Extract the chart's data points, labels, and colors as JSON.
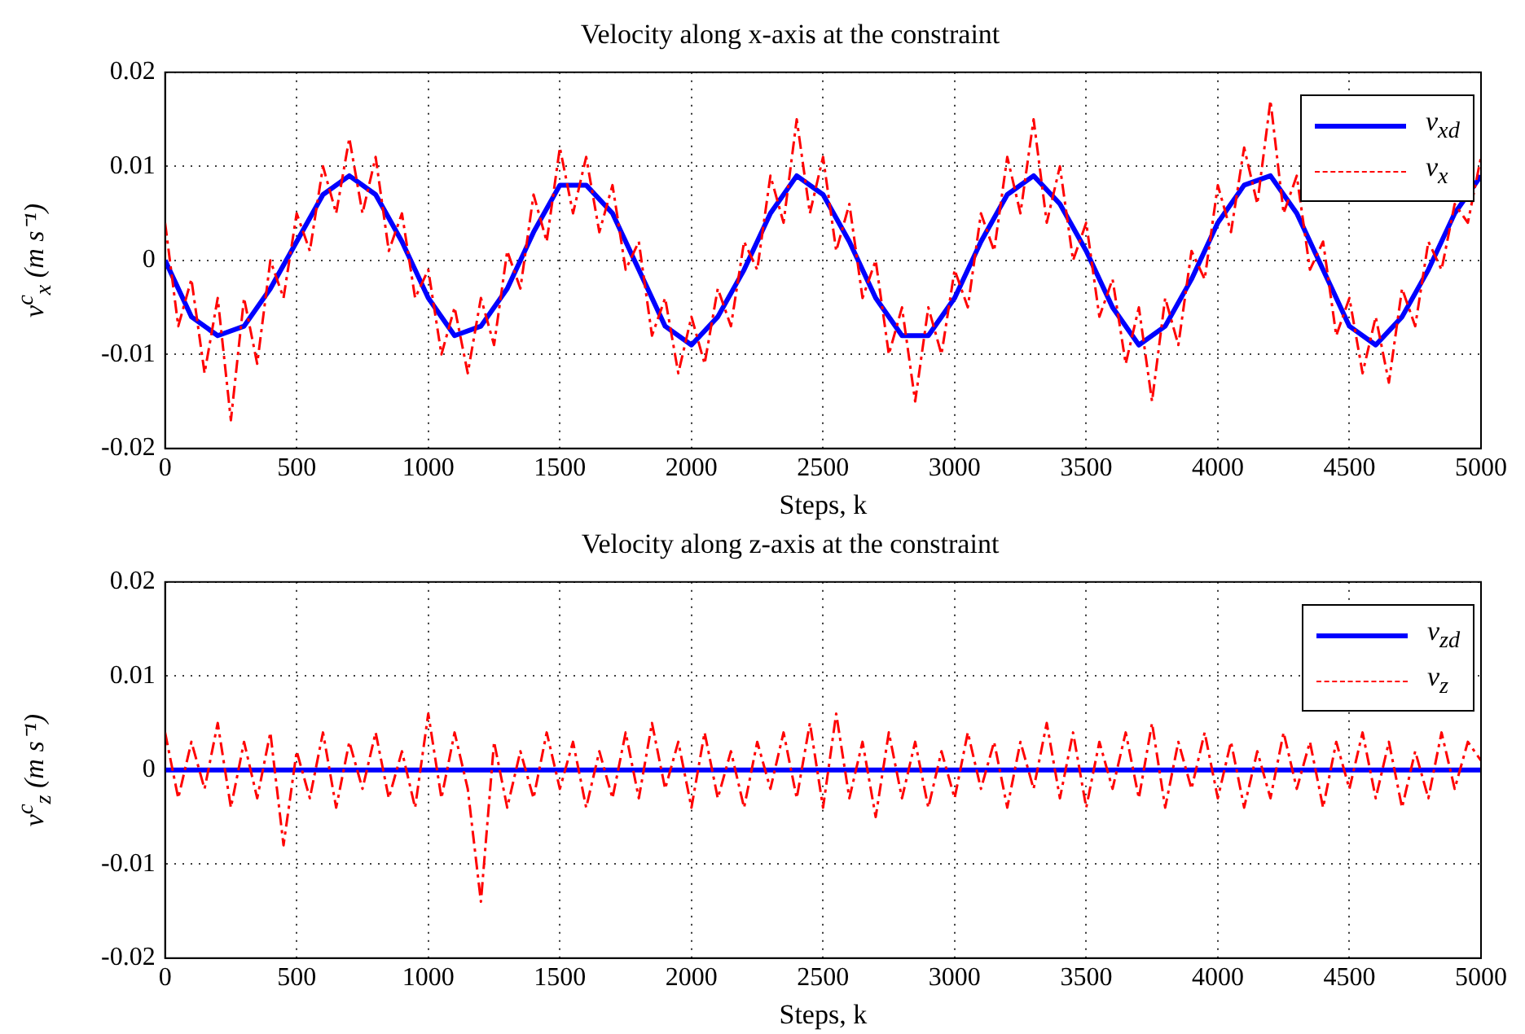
{
  "chart_data": [
    {
      "type": "line",
      "title": "Velocity along x-axis at the constraint",
      "xlabel": "Steps, k",
      "ylabel": "v$^{c}$$_{x}$ (m s⁻¹)",
      "x": [
        0,
        50,
        100,
        150,
        200,
        250,
        300,
        350,
        400,
        450,
        500,
        550,
        600,
        650,
        700,
        750,
        800,
        850,
        900,
        950,
        1000,
        1050,
        1100,
        1150,
        1200,
        1250,
        1300,
        1350,
        1400,
        1450,
        1500,
        1550,
        1600,
        1650,
        1700,
        1750,
        1800,
        1850,
        1900,
        1950,
        2000,
        2050,
        2100,
        2150,
        2200,
        2250,
        2300,
        2350,
        2400,
        2450,
        2500,
        2550,
        2600,
        2650,
        2700,
        2750,
        2800,
        2850,
        2900,
        2950,
        3000,
        3050,
        3100,
        3150,
        3200,
        3250,
        3300,
        3350,
        3400,
        3450,
        3500,
        3550,
        3600,
        3650,
        3700,
        3750,
        3800,
        3850,
        3900,
        3950,
        4000,
        4050,
        4100,
        4150,
        4200,
        4250,
        4300,
        4350,
        4400,
        4450,
        4500,
        4550,
        4600,
        4650,
        4700,
        4750,
        4800,
        4850,
        4900,
        4950,
        5000
      ],
      "series": [
        {
          "name": "v$_{xd}$",
          "color": "#0000ff",
          "line_style": "solid",
          "x": [
            0,
            100,
            200,
            300,
            400,
            500,
            600,
            700,
            800,
            900,
            1000,
            1100,
            1200,
            1300,
            1400,
            1500,
            1600,
            1700,
            1800,
            1900,
            2000,
            2100,
            2200,
            2300,
            2400,
            2500,
            2600,
            2700,
            2800,
            2900,
            3000,
            3100,
            3200,
            3300,
            3400,
            3500,
            3600,
            3700,
            3800,
            3900,
            4000,
            4100,
            4200,
            4300,
            4400,
            4500,
            4600,
            4700,
            4800,
            4900,
            5000
          ],
          "values": [
            0,
            -0.006,
            -0.008,
            -0.007,
            -0.003,
            0.002,
            0.007,
            0.009,
            0.007,
            0.002,
            -0.004,
            -0.008,
            -0.007,
            -0.003,
            0.003,
            0.008,
            0.008,
            0.005,
            -0.001,
            -0.007,
            -0.009,
            -0.006,
            -0.001,
            0.005,
            0.009,
            0.007,
            0.002,
            -0.004,
            -0.008,
            -0.008,
            -0.004,
            0.002,
            0.007,
            0.009,
            0.006,
            0.001,
            -0.005,
            -0.009,
            -0.007,
            -0.002,
            0.004,
            0.008,
            0.009,
            0.005,
            -0.001,
            -0.007,
            -0.009,
            -0.006,
            -0.001,
            0.005,
            0.009
          ]
        },
        {
          "name": "v$_{x}$",
          "color": "#ff0000",
          "line_style": "dashed",
          "values": [
            0.004,
            -0.007,
            -0.002,
            -0.012,
            -0.004,
            -0.017,
            -0.004,
            -0.011,
            0,
            -0.004,
            0.005,
            0.001,
            0.01,
            0.005,
            0.013,
            0.005,
            0.011,
            0.001,
            0.005,
            -0.004,
            -0.001,
            -0.01,
            -0.005,
            -0.012,
            -0.004,
            -0.009,
            0.001,
            -0.003,
            0.007,
            0.002,
            0.012,
            0.005,
            0.011,
            0.003,
            0.008,
            -0.001,
            0.002,
            -0.008,
            -0.004,
            -0.012,
            -0.006,
            -0.011,
            -0.003,
            -0.007,
            0.002,
            -0.001,
            0.009,
            0.004,
            0.015,
            0.005,
            0.011,
            0.001,
            0.006,
            -0.004,
            0,
            -0.01,
            -0.005,
            -0.015,
            -0.005,
            -0.01,
            -0.001,
            -0.005,
            0.005,
            0.001,
            0.011,
            0.005,
            0.015,
            0.004,
            0.01,
            0,
            0.004,
            -0.006,
            -0.002,
            -0.011,
            -0.005,
            -0.015,
            -0.004,
            -0.009,
            0.001,
            -0.002,
            0.008,
            0.003,
            0.012,
            0.006,
            0.017,
            0.005,
            0.009,
            -0.001,
            0.002,
            -0.008,
            -0.004,
            -0.012,
            -0.006,
            -0.013,
            -0.003,
            -0.007,
            0.002,
            -0.001,
            0.006,
            0.004,
            0.011
          ]
        }
      ],
      "xlim": [
        0,
        5000
      ],
      "xticks": [
        0,
        500,
        1000,
        1500,
        2000,
        2500,
        3000,
        3500,
        4000,
        4500,
        5000
      ],
      "ylim": [
        -0.02,
        0.02
      ],
      "yticks": [
        -0.02,
        -0.01,
        0,
        0.01,
        0.02
      ],
      "grid": true,
      "legend": "top right"
    },
    {
      "type": "line",
      "title": "Velocity along z-axis at the constraint",
      "xlabel": "Steps, k",
      "ylabel": "v$^{c}$$_{z}$ (m s⁻¹)",
      "x": [
        0,
        50,
        100,
        150,
        200,
        250,
        300,
        350,
        400,
        450,
        500,
        550,
        600,
        650,
        700,
        750,
        800,
        850,
        900,
        950,
        1000,
        1050,
        1100,
        1150,
        1200,
        1250,
        1300,
        1350,
        1400,
        1450,
        1500,
        1550,
        1600,
        1650,
        1700,
        1750,
        1800,
        1850,
        1900,
        1950,
        2000,
        2050,
        2100,
        2150,
        2200,
        2250,
        2300,
        2350,
        2400,
        2450,
        2500,
        2550,
        2600,
        2650,
        2700,
        2750,
        2800,
        2850,
        2900,
        2950,
        3000,
        3050,
        3100,
        3150,
        3200,
        3250,
        3300,
        3350,
        3400,
        3450,
        3500,
        3550,
        3600,
        3650,
        3700,
        3750,
        3800,
        3850,
        3900,
        3950,
        4000,
        4050,
        4100,
        4150,
        4200,
        4250,
        4300,
        4350,
        4400,
        4450,
        4500,
        4550,
        4600,
        4650,
        4700,
        4750,
        4800,
        4850,
        4900,
        4950,
        5000
      ],
      "series": [
        {
          "name": "v$_{zd}$",
          "color": "#0000ff",
          "line_style": "solid",
          "x": [
            0,
            5000
          ],
          "values": [
            0,
            0
          ]
        },
        {
          "name": "v$_{z}$",
          "color": "#ff0000",
          "line_style": "dashed",
          "values": [
            0.004,
            -0.003,
            0.003,
            -0.002,
            0.005,
            -0.004,
            0.003,
            -0.003,
            0.004,
            -0.008,
            0.002,
            -0.003,
            0.004,
            -0.004,
            0.003,
            -0.002,
            0.004,
            -0.003,
            0.002,
            -0.004,
            0.006,
            -0.003,
            0.004,
            -0.002,
            -0.014,
            0.003,
            -0.004,
            0.002,
            -0.003,
            0.004,
            -0.002,
            0.003,
            -0.004,
            0.002,
            -0.003,
            0.004,
            -0.003,
            0.005,
            -0.002,
            0.003,
            -0.004,
            0.004,
            -0.003,
            0.002,
            -0.004,
            0.003,
            -0.002,
            0.004,
            -0.003,
            0.005,
            -0.004,
            0.006,
            -0.003,
            0.003,
            -0.005,
            0.004,
            -0.003,
            0.003,
            -0.004,
            0.002,
            -0.003,
            0.004,
            -0.002,
            0.003,
            -0.004,
            0.003,
            -0.002,
            0.005,
            -0.003,
            0.004,
            -0.004,
            0.003,
            -0.002,
            0.004,
            -0.003,
            0.005,
            -0.004,
            0.003,
            -0.002,
            0.004,
            -0.003,
            0.003,
            -0.004,
            0.002,
            -0.003,
            0.004,
            -0.002,
            0.003,
            -0.004,
            0.003,
            -0.002,
            0.004,
            -0.003,
            0.003,
            -0.004,
            0.002,
            -0.003,
            0.004,
            -0.002,
            0.003,
            0.001
          ]
        }
      ],
      "xlim": [
        0,
        5000
      ],
      "xticks": [
        0,
        500,
        1000,
        1500,
        2000,
        2500,
        3000,
        3500,
        4000,
        4500,
        5000
      ],
      "ylim": [
        -0.02,
        0.02
      ],
      "yticks": [
        -0.02,
        -0.01,
        0,
        0.01,
        0.02
      ],
      "grid": true,
      "legend": "top right"
    }
  ]
}
